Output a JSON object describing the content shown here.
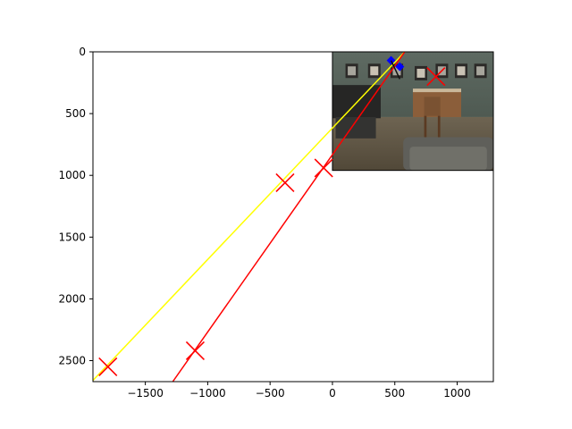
{
  "chart_data": {
    "type": "scatter",
    "title": "",
    "xlabel": "",
    "ylabel": "",
    "xlim": [
      -1920,
      1290
    ],
    "ylim": [
      2670,
      0
    ],
    "y_inverted": true,
    "grid": false,
    "xticks": [
      -1500,
      -1000,
      -500,
      0,
      500,
      1000
    ],
    "yticks": [
      0,
      500,
      1000,
      1500,
      2000,
      2500
    ],
    "xtick_labels": [
      "−1500",
      "−1000",
      "−500",
      "0",
      "500",
      "1000"
    ],
    "ytick_labels": [
      "0",
      "500",
      "1000",
      "1500",
      "2000",
      "2500"
    ],
    "image": {
      "description_extent": [
        0,
        1290,
        960,
        0
      ],
      "content": "photo-of-room-with-chairs"
    },
    "lines": [
      {
        "name": "",
        "color": "#ffff00",
        "x": [
          -1920,
          580
        ],
        "y": [
          2660,
          0
        ]
      },
      {
        "name": "",
        "color": "#ff0000",
        "x": [
          -1280,
          580
        ],
        "y": [
          2670,
          0
        ]
      }
    ],
    "series": [
      {
        "name": "",
        "color": "#ff0000",
        "marker": "x",
        "x": [
          -1800,
          -1100,
          -380,
          -70,
          830
        ],
        "y": [
          2550,
          2420,
          1060,
          940,
          200
        ]
      },
      {
        "name": "",
        "color": "#0000ff",
        "marker": "diamond",
        "x": [
          470,
          540
        ],
        "y": [
          70,
          120
        ]
      }
    ],
    "colors": {
      "axis": "#000000",
      "background": "#ffffff"
    }
  }
}
